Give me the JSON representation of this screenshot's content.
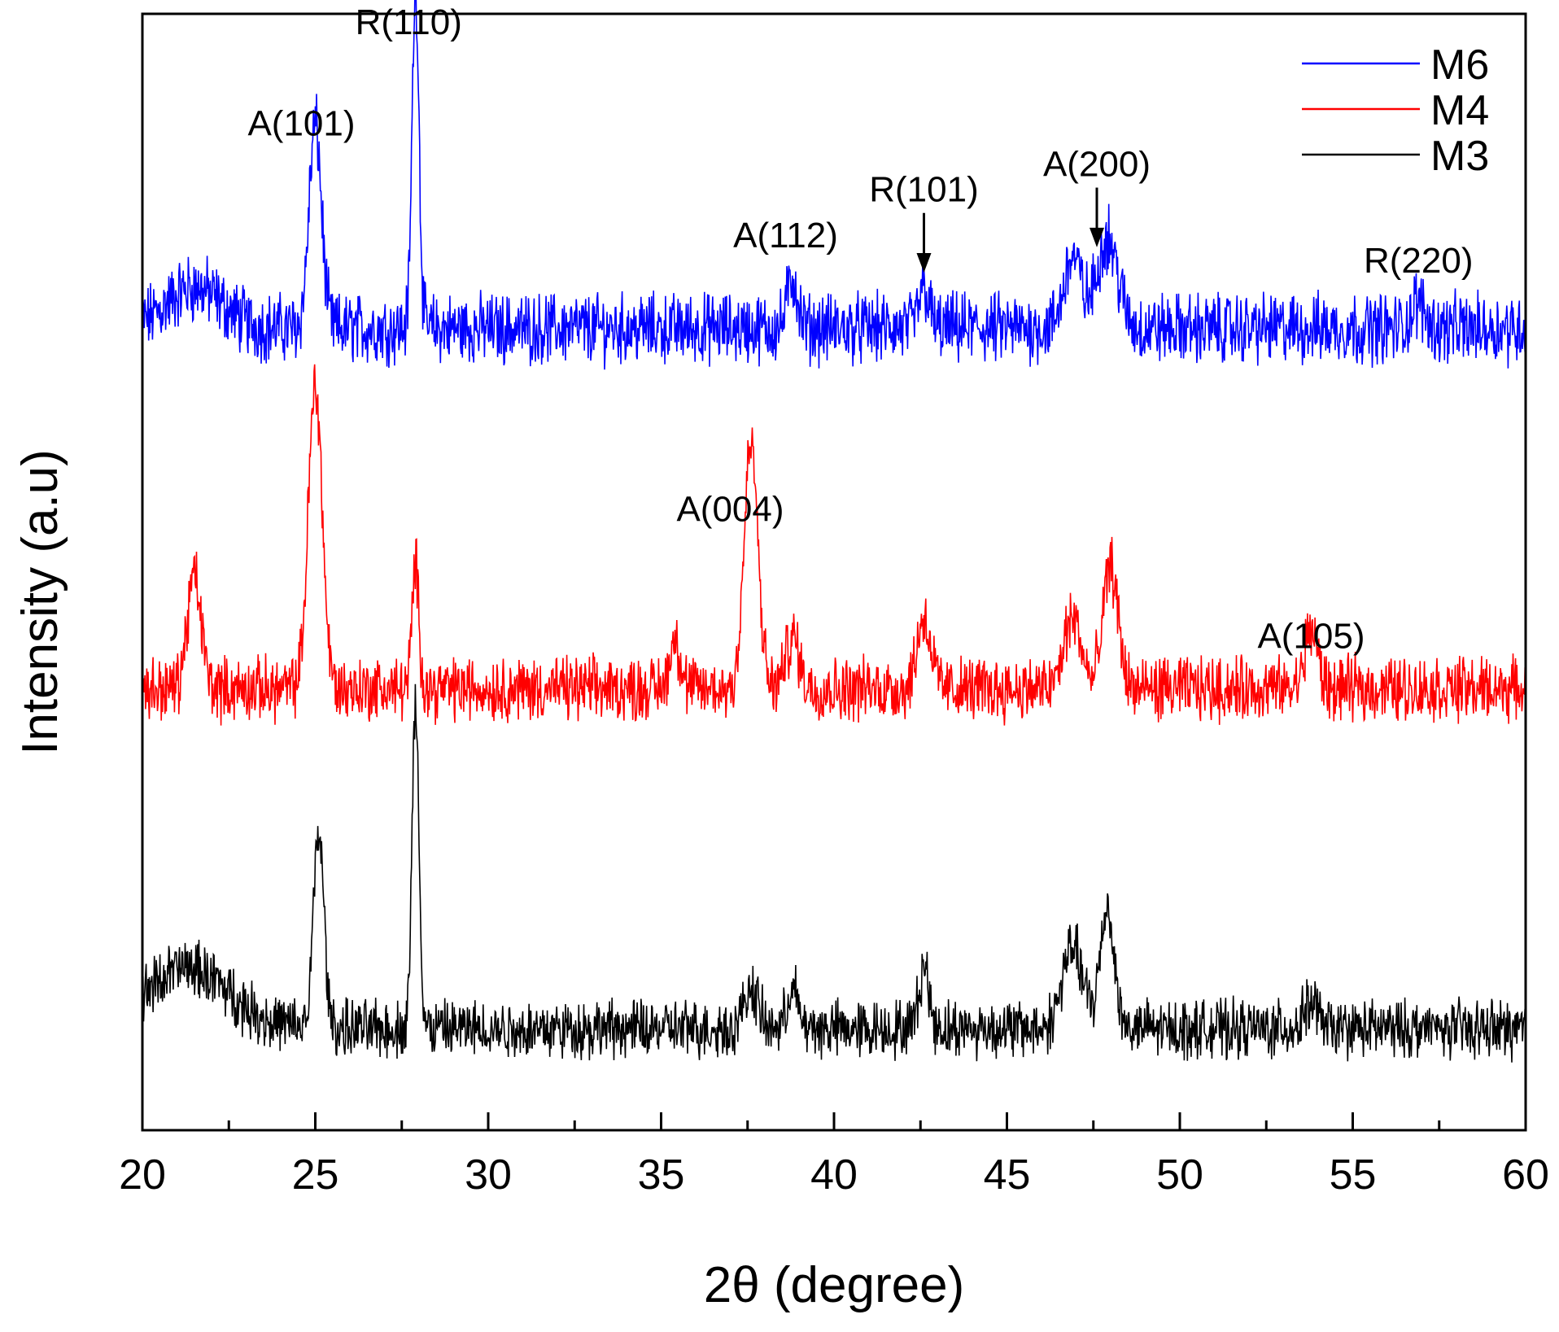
{
  "chart_data": {
    "type": "line",
    "title": "",
    "xlabel": "2θ (degree)",
    "ylabel": "Intensity (a.u)",
    "xlim": [
      20,
      60
    ],
    "ylim": [
      0,
      22
    ],
    "x_ticks": [
      20,
      25,
      30,
      35,
      40,
      45,
      50,
      55,
      60
    ],
    "x_tick_labels": [
      "20",
      "25",
      "30",
      "35",
      "40",
      "45",
      "50",
      "55",
      "60"
    ],
    "y_ticks_shown": false,
    "legend_position": "top-right",
    "series": [
      {
        "name": "M6",
        "color": "#0000ff",
        "baseline": 15.8,
        "noise": 0.55,
        "peaks": [
          {
            "x": 21.5,
            "h": 0.8,
            "w": 0.8
          },
          {
            "x": 25.0,
            "h": 4.0,
            "w": 0.18
          },
          {
            "x": 27.9,
            "h": 6.8,
            "w": 0.1
          },
          {
            "x": 38.8,
            "h": 1.0,
            "w": 0.15
          },
          {
            "x": 42.6,
            "h": 0.8,
            "w": 0.15
          },
          {
            "x": 46.9,
            "h": 1.4,
            "w": 0.25
          },
          {
            "x": 47.9,
            "h": 1.8,
            "w": 0.3
          },
          {
            "x": 56.9,
            "h": 0.5,
            "w": 0.2
          }
        ]
      },
      {
        "name": "M4",
        "color": "#ff0000",
        "baseline": 8.7,
        "noise": 0.5,
        "peaks": [
          {
            "x": 21.5,
            "h": 2.2,
            "w": 0.2
          },
          {
            "x": 25.0,
            "h": 6.0,
            "w": 0.2
          },
          {
            "x": 27.9,
            "h": 2.4,
            "w": 0.1
          },
          {
            "x": 35.4,
            "h": 1.0,
            "w": 0.15
          },
          {
            "x": 37.6,
            "h": 4.8,
            "w": 0.2
          },
          {
            "x": 38.8,
            "h": 1.0,
            "w": 0.2
          },
          {
            "x": 42.6,
            "h": 1.4,
            "w": 0.2
          },
          {
            "x": 46.9,
            "h": 1.4,
            "w": 0.25
          },
          {
            "x": 48.0,
            "h": 2.4,
            "w": 0.22
          },
          {
            "x": 53.8,
            "h": 1.2,
            "w": 0.18
          }
        ]
      },
      {
        "name": "M3",
        "color": "#000000",
        "baseline": 2.0,
        "noise": 0.45,
        "peaks": [
          {
            "x": 21.3,
            "h": 1.2,
            "w": 1.2
          },
          {
            "x": 25.1,
            "h": 3.9,
            "w": 0.15
          },
          {
            "x": 27.9,
            "h": 6.4,
            "w": 0.1
          },
          {
            "x": 37.6,
            "h": 0.8,
            "w": 0.2
          },
          {
            "x": 38.8,
            "h": 0.8,
            "w": 0.15
          },
          {
            "x": 42.6,
            "h": 1.2,
            "w": 0.15
          },
          {
            "x": 46.9,
            "h": 1.6,
            "w": 0.3
          },
          {
            "x": 47.9,
            "h": 2.4,
            "w": 0.2
          },
          {
            "x": 53.8,
            "h": 0.5,
            "w": 0.2
          }
        ]
      }
    ],
    "annotations": [
      {
        "label": "A(101)",
        "x": 24.6,
        "y": 19.6,
        "arrow": false
      },
      {
        "label": "R(110)",
        "x": 27.7,
        "y": 21.6,
        "arrow": false
      },
      {
        "label": "A(112)",
        "x": 38.6,
        "y": 17.4,
        "arrow": false
      },
      {
        "label": "R(101)",
        "x": 42.6,
        "y": 18.3,
        "arrow": true,
        "arrow_to_y": 16.9
      },
      {
        "label": "A(200)",
        "x": 47.6,
        "y": 18.8,
        "arrow": true,
        "arrow_to_y": 17.4
      },
      {
        "label": "R(220)",
        "x": 56.9,
        "y": 16.9,
        "arrow": false
      },
      {
        "label": "A(004)",
        "x": 37.0,
        "y": 12.0,
        "arrow": false
      },
      {
        "label": "A(105)",
        "x": 53.8,
        "y": 9.5,
        "arrow": false
      }
    ]
  }
}
